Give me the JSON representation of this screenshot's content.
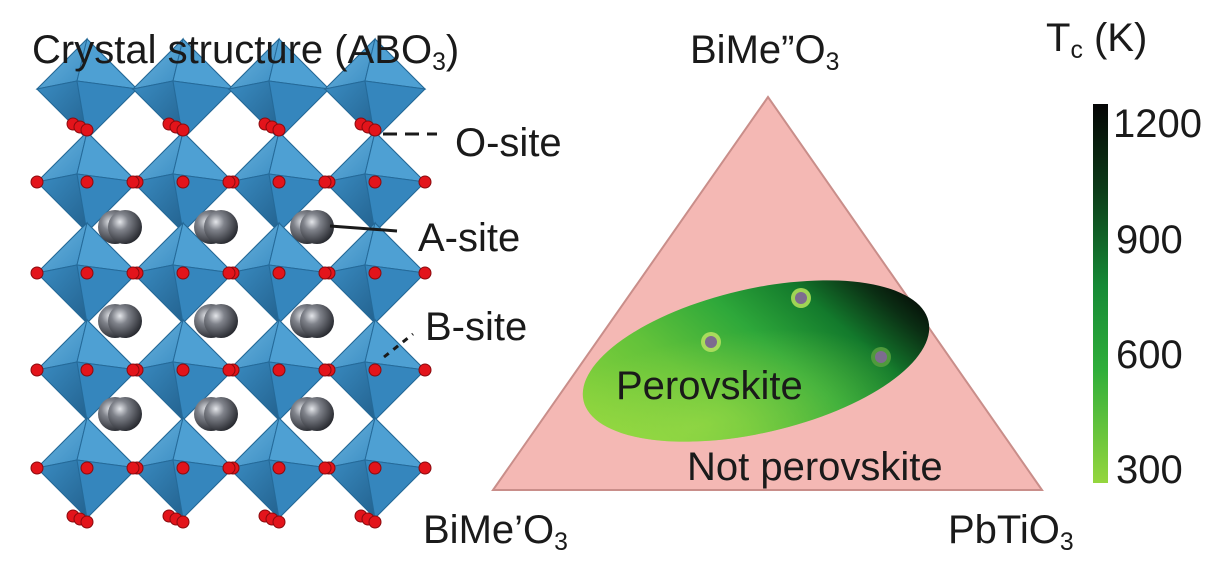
{
  "crystal": {
    "title_main": "Crystal structure (ABO",
    "title_sub": "3",
    "title_close": ")",
    "o_site": "O-site",
    "a_site": "A-site",
    "b_site": "B-site",
    "colors": {
      "octahedron": "#3d93c8",
      "oxygen": "#e3141b",
      "a_cation": "#4b4e56"
    }
  },
  "ternary": {
    "top_vertex": {
      "main": "BiMe”O",
      "sub": "3"
    },
    "left_vertex": {
      "main": "BiMe’O",
      "sub": "3"
    },
    "right_vertex": {
      "main": "PbTiO",
      "sub": "3"
    },
    "region_perovskite": "Perovskite",
    "region_not_perovskite": "Not perovskite",
    "colors": {
      "triangle": "#f4b8b4",
      "dot": "#7d6c8f"
    }
  },
  "colorbar": {
    "title_main": "T",
    "title_sub": "c",
    "title_unit": " (K)",
    "ticks": [
      "1200",
      "900",
      "600",
      "300"
    ],
    "range": [
      300,
      1200
    ],
    "colors": {
      "high": "#0a0a0a",
      "mid": "#1a9a3c",
      "low": "#8bd23a"
    }
  }
}
